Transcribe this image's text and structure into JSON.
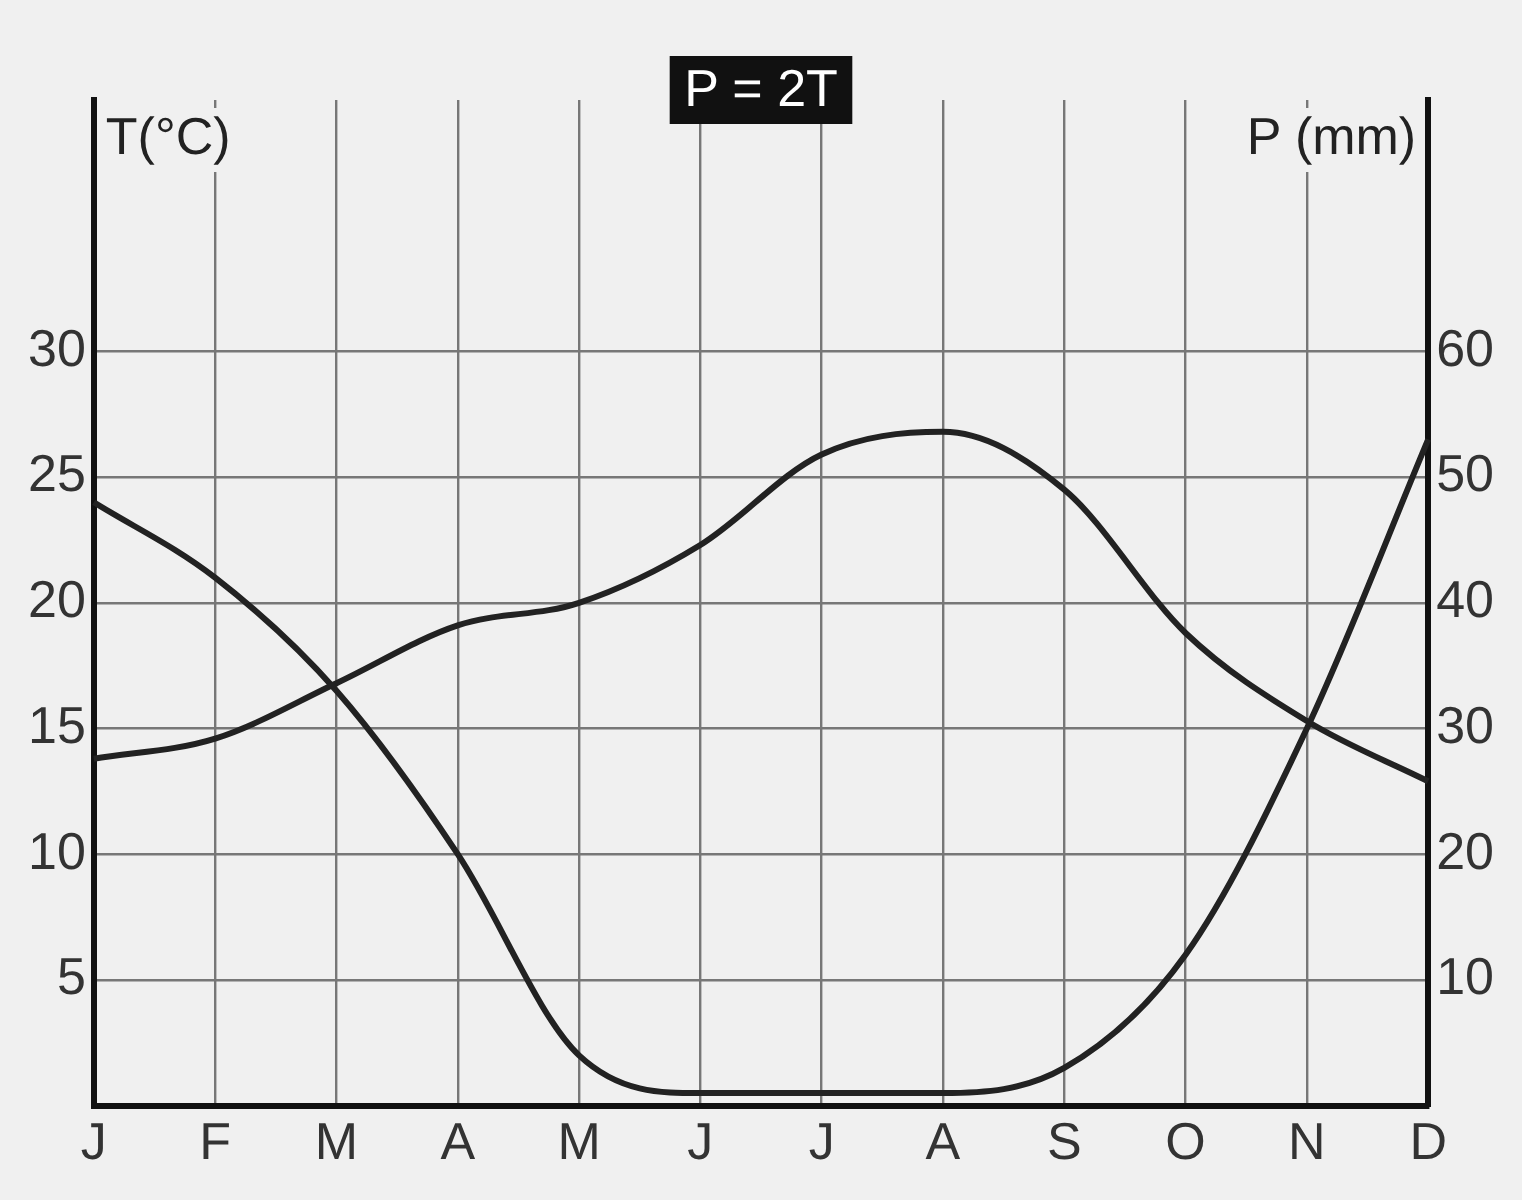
{
  "chart_data": {
    "type": "line",
    "title": "P = 2T",
    "ylabel": "T(°C)",
    "y2label": "P (mm)",
    "categories": [
      "J",
      "F",
      "M",
      "A",
      "M",
      "J",
      "J",
      "A",
      "S",
      "O",
      "N",
      "D"
    ],
    "series": [
      {
        "color": "#222222",
        "values": [
          13.8,
          14.6,
          16.8,
          19.1,
          20.0,
          22.3,
          25.9,
          26.8,
          24.5,
          18.8,
          15.3,
          12.9
        ]
      },
      {
        "color": "#222222",
        "axis": "y2",
        "values": [
          48,
          42,
          33,
          20,
          4,
          1,
          1,
          1,
          3,
          12,
          30,
          53
        ]
      }
    ],
    "ylim": [
      0,
      40
    ],
    "yticks": [
      5,
      10,
      15,
      20,
      25,
      30
    ],
    "y2lim": [
      0,
      80
    ],
    "y2ticks": [
      10,
      20,
      30,
      40,
      50,
      60
    ],
    "grid": true,
    "legend": false,
    "marker": "none",
    "line_style": "solid"
  }
}
